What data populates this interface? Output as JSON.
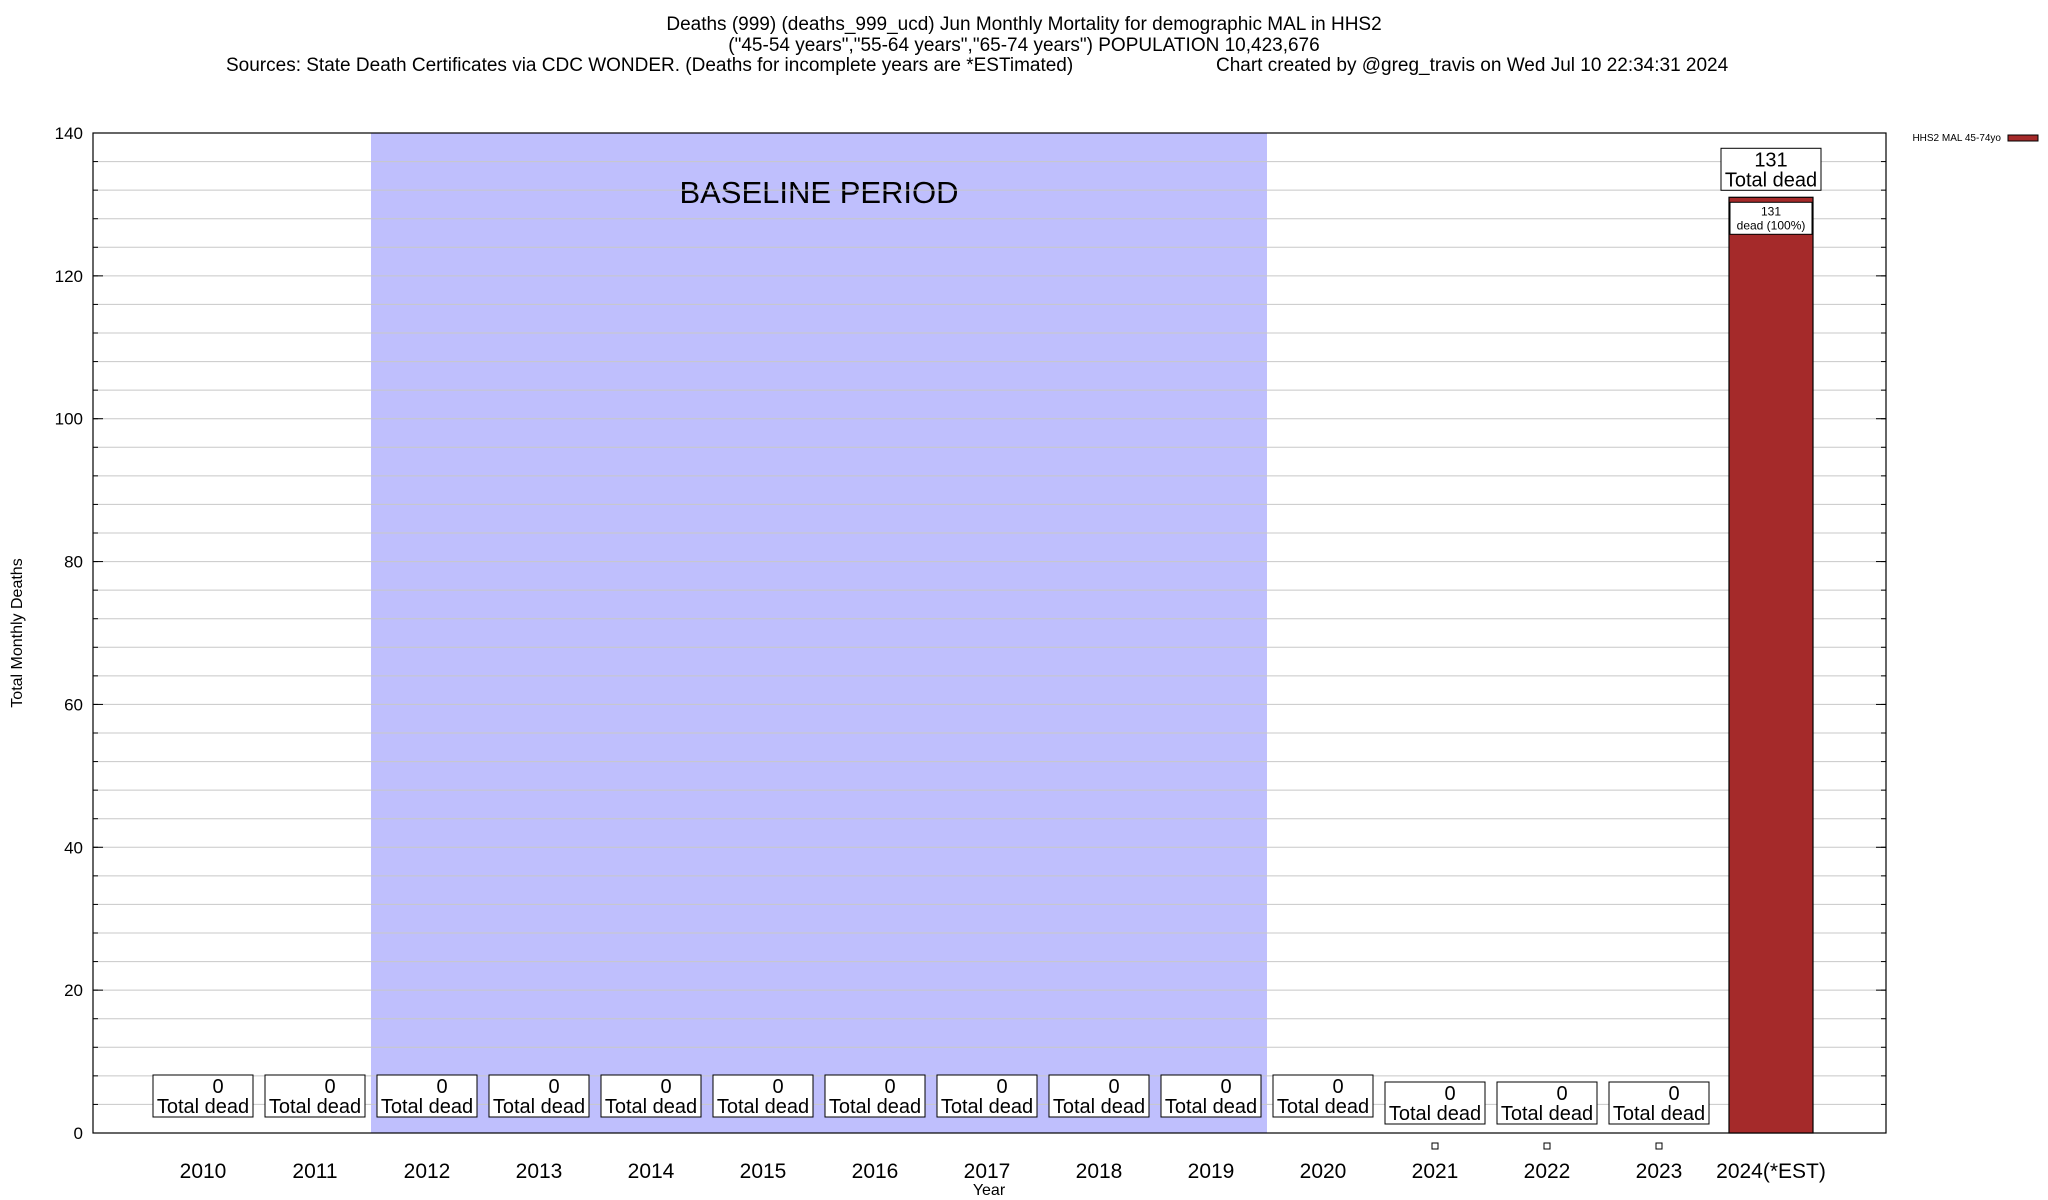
{
  "header": {
    "title_line1": "Deaths (999) (deaths_999_ucd) Jun Monthly Mortality for demographic MAL in HHS2",
    "title_line2": "(\"45-54 years\",\"55-64 years\",\"65-74 years\") POPULATION 10,423,676",
    "sources": "Sources: State Death Certificates via CDC WONDER. (Deaths for incomplete years are *ESTimated)",
    "credit": "Chart created by @greg_travis on Wed Jul 10 22:34:31 2024"
  },
  "chart_data": {
    "type": "bar",
    "title": "Deaths (999) (deaths_999_ucd) Jun Monthly Mortality for demographic MAL in HHS2",
    "xlabel": "Year",
    "ylabel": "Total Monthly Deaths",
    "ylim": [
      0,
      140
    ],
    "yticks": [
      0,
      20,
      40,
      60,
      80,
      100,
      120,
      140
    ],
    "grid": true,
    "legend_position": "top-right",
    "categories": [
      "2010",
      "2011",
      "2012",
      "2013",
      "2014",
      "2015",
      "2016",
      "2017",
      "2018",
      "2019",
      "2020",
      "2021",
      "2022",
      "2023",
      "2024(*EST)"
    ],
    "series": [
      {
        "name": "HHS2 MAL 45-74yo",
        "color": "#a52a2a",
        "values": [
          0,
          0,
          0,
          0,
          0,
          0,
          0,
          0,
          0,
          0,
          0,
          0,
          0,
          0,
          131
        ]
      }
    ],
    "total_labels": [
      "0",
      "0",
      "0",
      "0",
      "0",
      "0",
      "0",
      "0",
      "0",
      "0",
      "0",
      "0",
      "0",
      "0",
      "131"
    ],
    "total_suffix": "Total dead",
    "bar_labels": [
      {
        "category": "2024(*EST)",
        "line1": "131",
        "line2": "dead (100%)"
      }
    ],
    "baseline_period": {
      "label": "BASELINE PERIOD",
      "from": "2012",
      "to": "2019",
      "color": "#bfbffd"
    }
  }
}
